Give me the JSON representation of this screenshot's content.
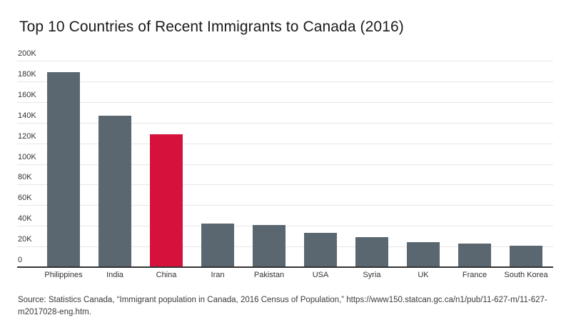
{
  "title": "Top 10 Countries of Recent Immigrants to Canada (2016)",
  "source": "Source: Statistics Canada, “Immigrant population in Canada, 2016 Census of Population,” https://www150.statcan.gc.ca/n1/pub/11-627-m/11-627-m2017028-eng.htm.",
  "colors": {
    "bar": "#5a6770",
    "highlight": "#d5113c",
    "gridline": "#e6e6e6",
    "axis": "#333333",
    "text": "#333333",
    "title_text": "#1a1a1a"
  },
  "chart_data": {
    "type": "bar",
    "title": "Top 10 Countries of Recent Immigrants to Canada (2016)",
    "categories": [
      "Philippines",
      "India",
      "China",
      "Iran",
      "Pakistan",
      "USA",
      "Syria",
      "UK",
      "France",
      "South Korea"
    ],
    "values": [
      189000,
      147000,
      129000,
      42000,
      41000,
      33000,
      29000,
      24000,
      23000,
      21000
    ],
    "highlight_category": "China",
    "xlabel": "",
    "ylabel": "",
    "ylim": [
      0,
      200000
    ],
    "ytick_values": [
      0,
      20000,
      40000,
      60000,
      80000,
      100000,
      120000,
      140000,
      160000,
      180000,
      200000
    ],
    "ytick_labels": [
      "0",
      "20K",
      "40K",
      "60K",
      "80K",
      "100K",
      "120K",
      "140K",
      "160K",
      "180K",
      "200K"
    ],
    "grid": "horizontal",
    "legend": "none"
  }
}
